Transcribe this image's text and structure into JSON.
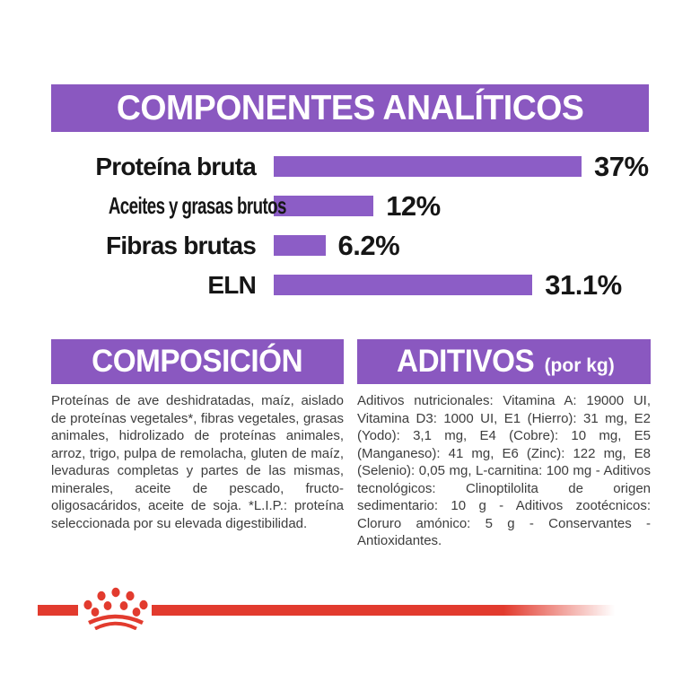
{
  "page": {
    "background": "#ffffff",
    "accent_purple": "#8a58c0",
    "bar_purple": "#8c5dc6",
    "brand_red": "#e23b2e",
    "text_black": "#161616",
    "body_text_gray": "#3d3d3d"
  },
  "header": {
    "title": "COMPONENTES ANALÍTICOS"
  },
  "chart_data": {
    "type": "bar",
    "orientation": "horizontal",
    "title": "COMPONENTES ANALÍTICOS",
    "categories": [
      "Proteína bruta",
      "Aceites y grasas brutos",
      "Fibras brutas",
      "ELN"
    ],
    "values": [
      37,
      12,
      6.2,
      31.1
    ],
    "value_labels": [
      "37%",
      "12%",
      "6.2%",
      "31.1%"
    ],
    "unit": "%",
    "xlim": [
      0,
      40
    ],
    "grid": false,
    "legend": false,
    "bar_color": "#8c5dc6"
  },
  "sections": {
    "composicion": {
      "title": "COMPOSICIÓN",
      "body": "Proteínas de ave deshidratadas, maíz, aislado de proteínas vegetales*, fibras vegetales, grasas animales, hidrolizado de proteínas animales, arroz, trigo, pulpa de remolacha, gluten de maíz, levaduras completas y partes de las mismas, minerales, aceite de pescado, fructo-oligosacáridos, aceite de soja. *L.I.P.: proteína seleccionada por su elevada digestibilidad."
    },
    "aditivos": {
      "title": "ADITIVOS",
      "title_suffix": "(por kg)",
      "body": "Aditivos nutricionales: Vitamina A: 19000 UI, Vitamina D3: 1000 UI, E1 (Hierro): 31 mg, E2 (Yodo): 3,1 mg, E4 (Cobre): 10 mg, E5 (Manganeso): 41 mg, E6 (Zinc): 122 mg, E8 (Selenio): 0,05 mg, L-carnitina: 100 mg - Aditivos tecnológicos: Clinoptilolita de origen sedimentario: 10 g - Aditivos zootécnicos: Cloruro amónico: 5 g - Conservantes - Antioxidantes."
    }
  },
  "footer": {
    "logo": "royal-canin-crown"
  }
}
